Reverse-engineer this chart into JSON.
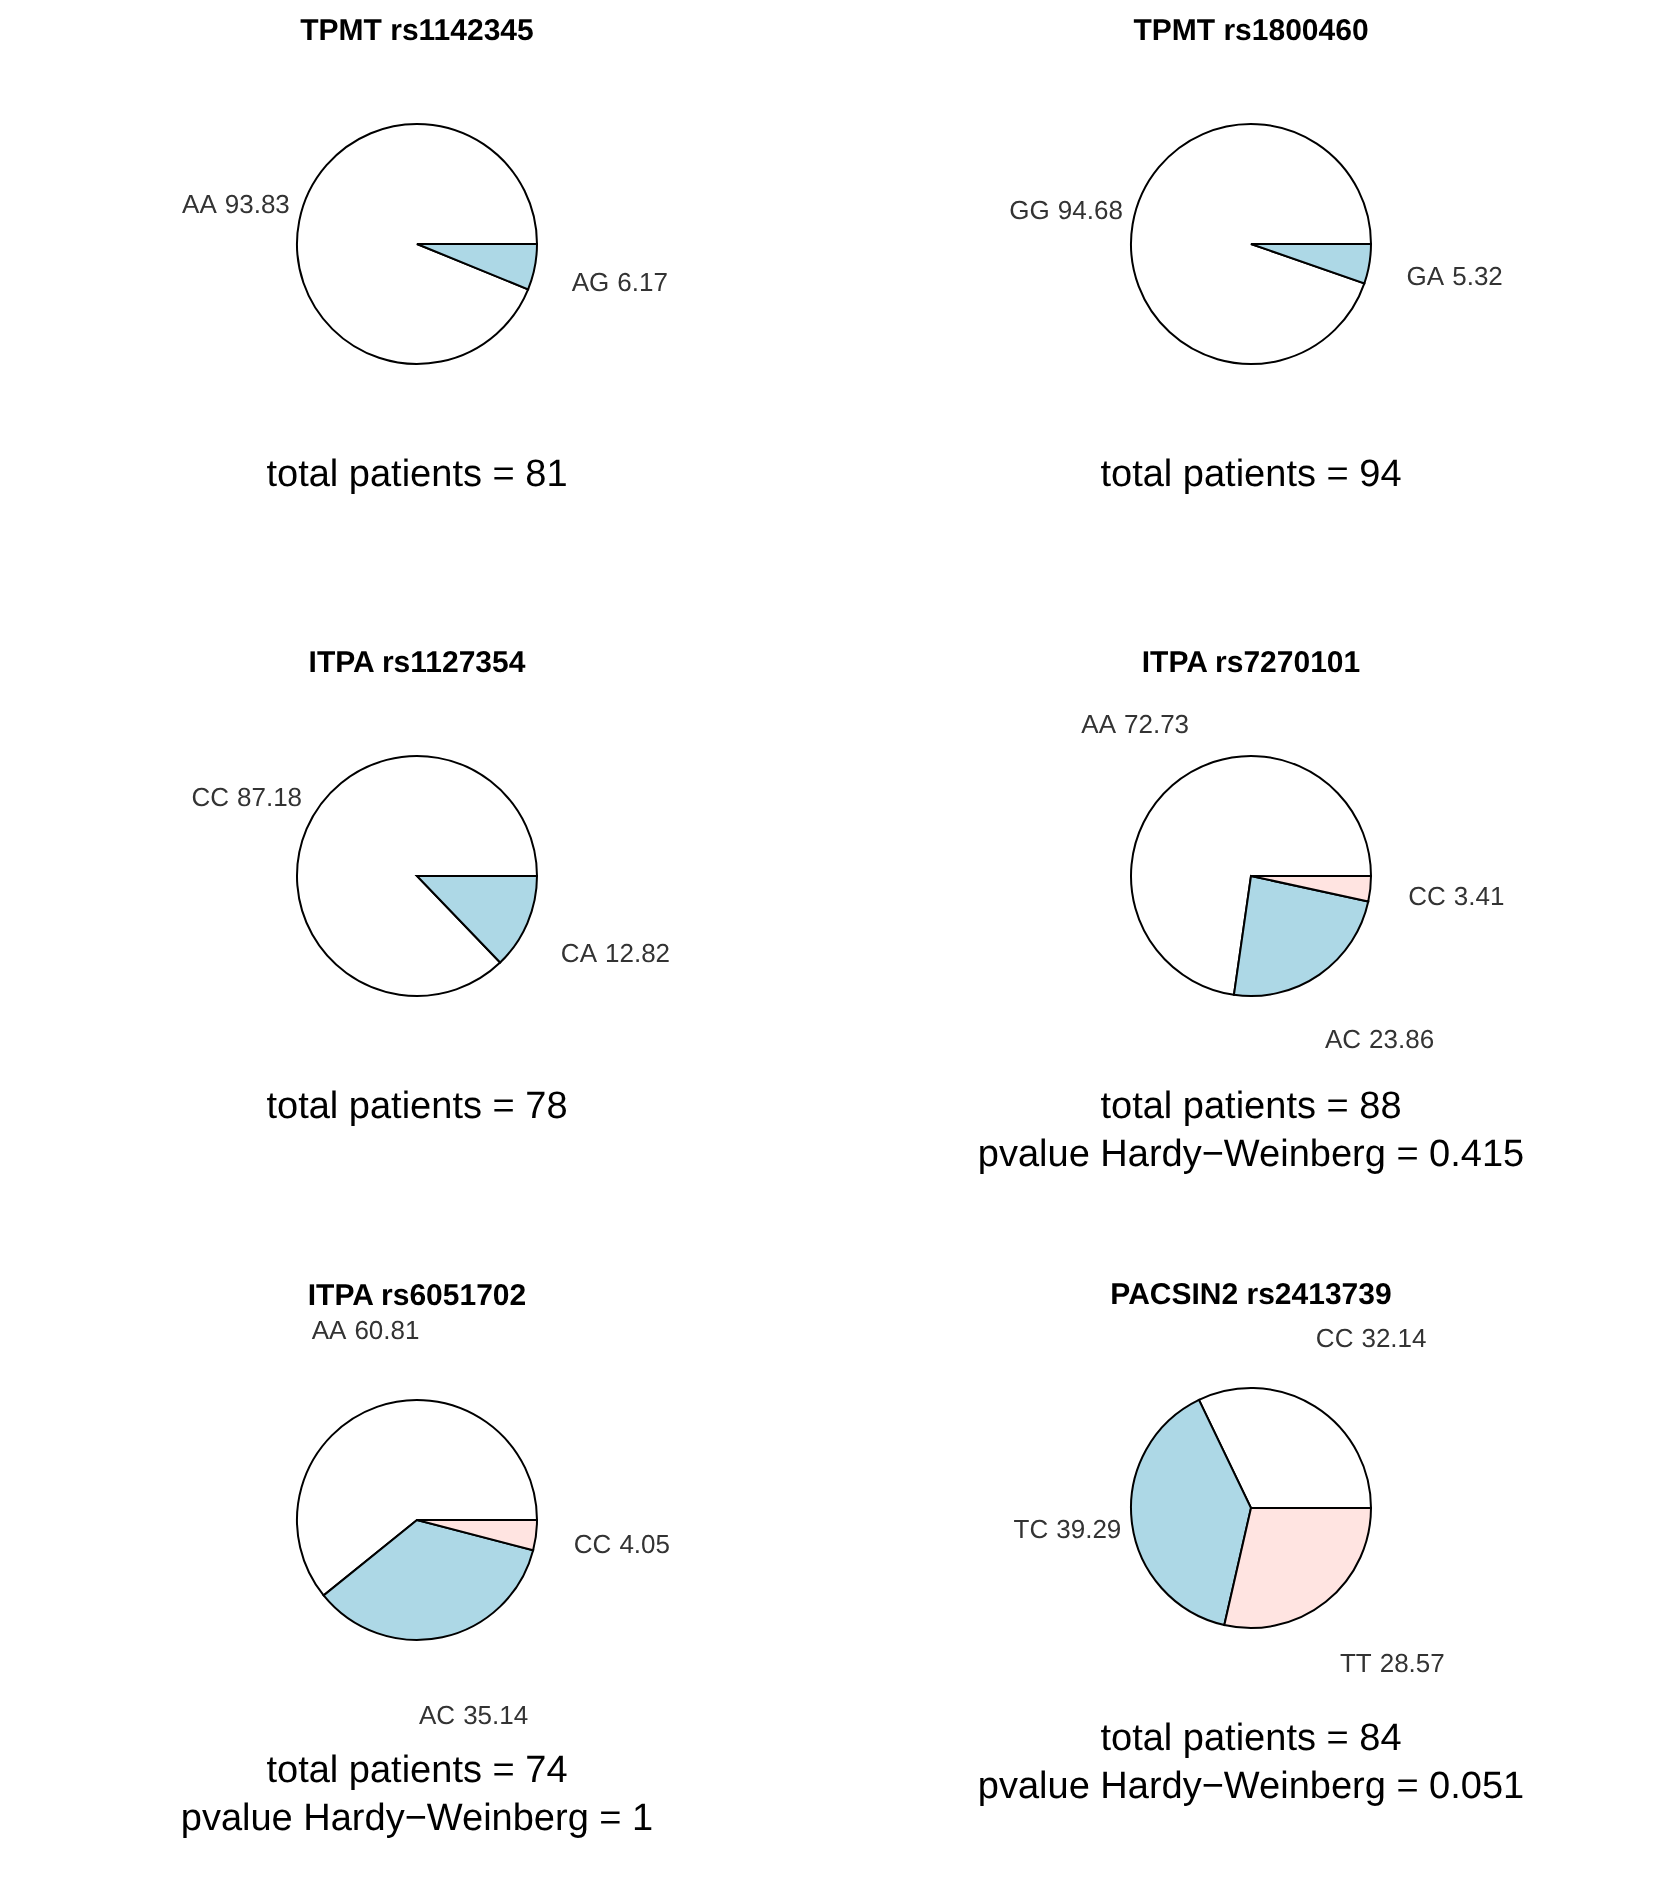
{
  "chart_data": [
    {
      "type": "pie",
      "title": "TPMT rs1142345",
      "categories": [
        "AA",
        "AG"
      ],
      "values": [
        93.83,
        6.17
      ],
      "colors": [
        "#ffffff",
        "#add8e6"
      ],
      "data_labels": true,
      "annotations": [
        "total patients = 81"
      ]
    },
    {
      "type": "pie",
      "title": "TPMT rs1800460",
      "categories": [
        "GG",
        "GA"
      ],
      "values": [
        94.68,
        5.32
      ],
      "colors": [
        "#ffffff",
        "#add8e6"
      ],
      "data_labels": true,
      "annotations": [
        "total patients = 94"
      ]
    },
    {
      "type": "pie",
      "title": "ITPA rs1127354",
      "categories": [
        "CC",
        "CA"
      ],
      "values": [
        87.18,
        12.82
      ],
      "colors": [
        "#ffffff",
        "#add8e6"
      ],
      "data_labels": true,
      "annotations": [
        "total patients = 78"
      ]
    },
    {
      "type": "pie",
      "title": "ITPA rs7270101",
      "categories": [
        "AA",
        "AC",
        "CC"
      ],
      "values": [
        72.73,
        23.86,
        3.41
      ],
      "colors": [
        "#ffffff",
        "#add8e6",
        "#ffe4e1"
      ],
      "data_labels": true,
      "annotations": [
        "total patients = 88",
        "pvalue Hardy−Weinberg = 0.415"
      ]
    },
    {
      "type": "pie",
      "title": "ITPA rs6051702",
      "categories": [
        "AA",
        "AC",
        "CC"
      ],
      "values": [
        60.81,
        35.14,
        4.05
      ],
      "colors": [
        "#ffffff",
        "#add8e6",
        "#ffe4e1"
      ],
      "data_labels": true,
      "annotations": [
        "total patients = 74",
        "pvalue Hardy−Weinberg = 1"
      ]
    },
    {
      "type": "pie",
      "title": "PACSIN2 rs2413739",
      "categories": [
        "CC",
        "TC",
        "TT"
      ],
      "values": [
        32.14,
        39.29,
        28.57
      ],
      "colors": [
        "#ffffff",
        "#add8e6",
        "#ffe4e1"
      ],
      "data_labels": true,
      "annotations": [
        "total patients = 84",
        "pvalue Hardy−Weinberg = 0.051"
      ]
    }
  ]
}
